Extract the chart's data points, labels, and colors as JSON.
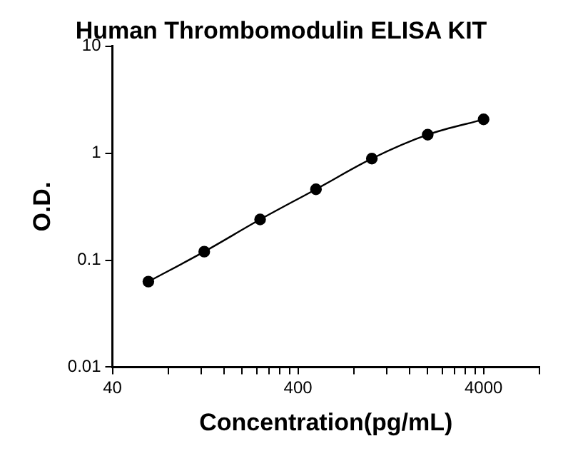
{
  "chart_data": {
    "type": "line",
    "title": "Human Thrombomodulin ELISA KIT",
    "xlabel": "Concentration(pg/mL)",
    "ylabel": "O.D.",
    "x": [
      62.5,
      125,
      250,
      500,
      1000,
      2000,
      4000
    ],
    "series": [
      {
        "color": "#000000",
        "values": [
          0.063,
          0.12,
          0.24,
          0.46,
          0.89,
          1.49,
          2.07
        ]
      }
    ],
    "log": "xy",
    "xlim": [
      40,
      8000
    ],
    "ylim": [
      0.01,
      10
    ],
    "xticks": [
      40,
      {
        "value": 80,
        "label": null
      },
      {
        "value": 120,
        "label": null
      },
      {
        "value": 160,
        "label": null
      },
      {
        "value": 200,
        "label": null
      },
      {
        "value": 240,
        "label": null
      },
      {
        "value": 280,
        "label": null
      },
      {
        "value": 320,
        "label": null
      },
      {
        "value": 360,
        "label": null
      },
      400,
      {
        "value": 800,
        "label": null
      },
      {
        "value": 1200,
        "label": null
      },
      {
        "value": 1600,
        "label": null
      },
      {
        "value": 2000,
        "label": null
      },
      {
        "value": 2400,
        "label": null
      },
      {
        "value": 2800,
        "label": null
      },
      {
        "value": 3200,
        "label": null
      },
      {
        "value": 3600,
        "label": null
      },
      4000,
      {
        "value": 8000,
        "label": null
      }
    ],
    "yticks": [
      0.01,
      0.1,
      1,
      10
    ],
    "grid": false,
    "legend": false,
    "marker": "circle",
    "line_style": "solid"
  }
}
